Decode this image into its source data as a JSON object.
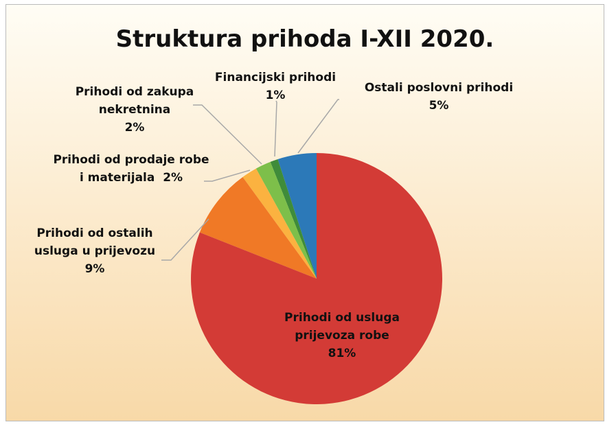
{
  "chart_data": {
    "type": "pie",
    "title": "Struktura prihoda I-XII 2020.",
    "categories": [
      "Prihodi od usluga prijevoza robe",
      "Prihodi od ostalih usluga u prijevozu",
      "Prihodi od prodaje robe i materijala",
      "Prihodi od zakupa nekretnina",
      "Financijski prihodi",
      "Ostali poslovni prihodi"
    ],
    "values": [
      81,
      9,
      2,
      2,
      1,
      5
    ],
    "value_labels": [
      "81%",
      "9%",
      "2%",
      "2%",
      "1%",
      "5%"
    ],
    "colors": [
      "#d33b36",
      "#f07926",
      "#fbb240",
      "#7dbf4a",
      "#3f8c3a",
      "#2c79b8"
    ]
  }
}
